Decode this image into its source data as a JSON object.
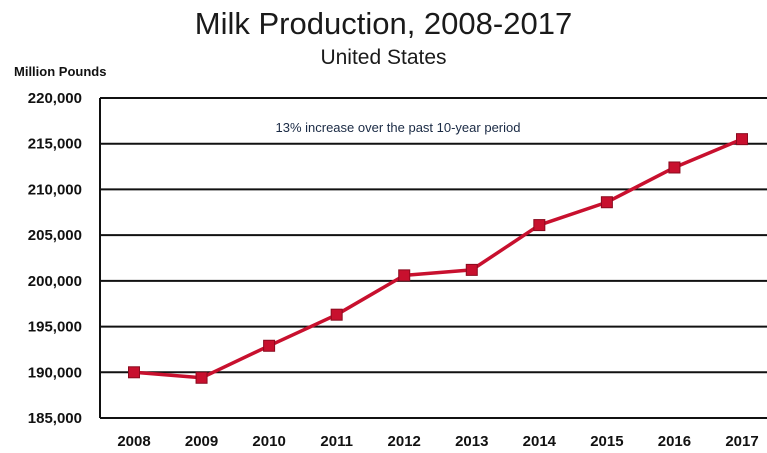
{
  "chart_data": {
    "type": "line",
    "title": "Milk Production, 2008-2017",
    "subtitle": "United States",
    "ylabel": "Million Pounds",
    "xlabel": "",
    "annotation": "13% increase over the past 10-year period",
    "x": [
      "2008",
      "2009",
      "2010",
      "2011",
      "2012",
      "2013",
      "2014",
      "2015",
      "2016",
      "2017"
    ],
    "y_ticks": [
      "220,000",
      "215,000",
      "210,000",
      "205,000",
      "200,000",
      "195,000",
      "190,000",
      "185,000"
    ],
    "y_tick_values": [
      220000,
      215000,
      210000,
      205000,
      200000,
      195000,
      190000,
      185000
    ],
    "series": [
      {
        "values": [
          190000,
          189400,
          192900,
          196300,
          200600,
          201200,
          206100,
          208600,
          212400,
          215500
        ],
        "color": "#c8102e"
      }
    ],
    "ylim": [
      185000,
      220000
    ],
    "grid": true,
    "legend": "none"
  }
}
